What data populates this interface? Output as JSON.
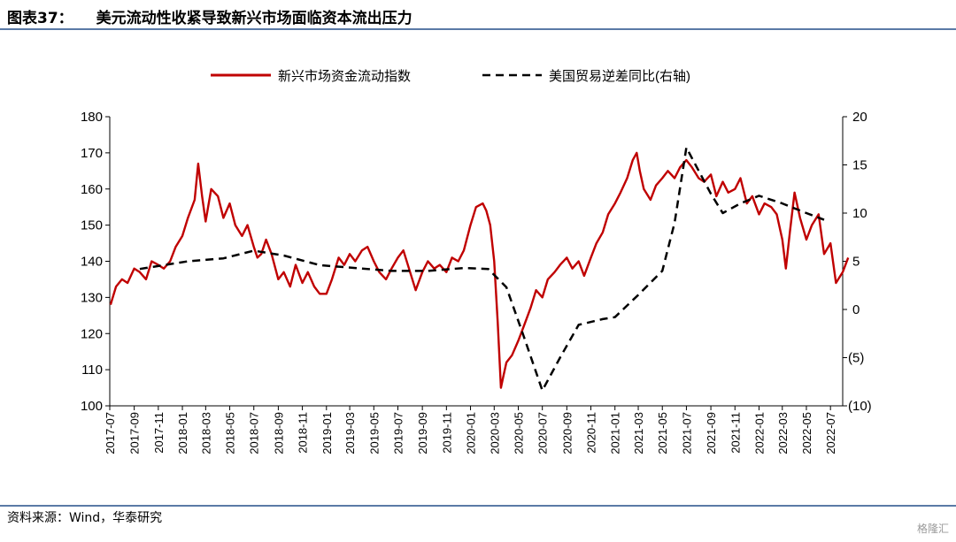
{
  "header": {
    "figure_number": "图表37：",
    "title": "美元流动性收紧导致新兴市场面临资本流出压力"
  },
  "footer": {
    "source": "资料来源：Wind，华泰研究",
    "watermark": "格隆汇"
  },
  "colors": {
    "rule": "#5a7aa6",
    "series_primary": "#c00000",
    "series_secondary": "#000000"
  },
  "chart_data": {
    "type": "line",
    "title": "",
    "legend_position": "top",
    "grid": false,
    "x_start": "2017-07",
    "x_end": "2022-08",
    "x_tick_labels": [
      "2017-07",
      "2017-09",
      "2017-11",
      "2018-01",
      "2018-03",
      "2018-05",
      "2018-07",
      "2018-09",
      "2018-11",
      "2019-01",
      "2019-03",
      "2019-05",
      "2019-07",
      "2019-09",
      "2019-11",
      "2020-01",
      "2020-03",
      "2020-05",
      "2020-07",
      "2020-09",
      "2020-11",
      "2021-01",
      "2021-03",
      "2021-05",
      "2021-07",
      "2021-09",
      "2021-11",
      "2022-01",
      "2022-03",
      "2022-05",
      "2022-07"
    ],
    "y_left": {
      "range": [
        100,
        180
      ],
      "ticks": [
        "100",
        "110",
        "120",
        "130",
        "140",
        "150",
        "160",
        "170",
        "180"
      ]
    },
    "y_right": {
      "range": [
        -10,
        20
      ],
      "ticks": [
        "(10)",
        "(5)",
        "0",
        "5",
        "10",
        "15",
        "20"
      ]
    },
    "series": [
      {
        "name": "新兴市场资金流动指数",
        "axis": "left",
        "style": "solid",
        "color": "#c00000",
        "points": [
          [
            "2017-07-03",
            128
          ],
          [
            "2017-07-17",
            133
          ],
          [
            "2017-08-01",
            135
          ],
          [
            "2017-08-15",
            134
          ],
          [
            "2017-09-01",
            138
          ],
          [
            "2017-09-15",
            137
          ],
          [
            "2017-10-01",
            135
          ],
          [
            "2017-10-15",
            140
          ],
          [
            "2017-11-01",
            139
          ],
          [
            "2017-11-15",
            138
          ],
          [
            "2017-12-01",
            140
          ],
          [
            "2017-12-15",
            144
          ],
          [
            "2018-01-01",
            147
          ],
          [
            "2018-01-15",
            152
          ],
          [
            "2018-02-01",
            157
          ],
          [
            "2018-02-10",
            167
          ],
          [
            "2018-02-20",
            158
          ],
          [
            "2018-03-01",
            151
          ],
          [
            "2018-03-15",
            160
          ],
          [
            "2018-04-01",
            158
          ],
          [
            "2018-04-15",
            152
          ],
          [
            "2018-05-01",
            156
          ],
          [
            "2018-05-15",
            150
          ],
          [
            "2018-06-01",
            147
          ],
          [
            "2018-06-15",
            150
          ],
          [
            "2018-07-01",
            144
          ],
          [
            "2018-07-10",
            141
          ],
          [
            "2018-07-20",
            142
          ],
          [
            "2018-08-01",
            146
          ],
          [
            "2018-08-15",
            142
          ],
          [
            "2018-09-01",
            135
          ],
          [
            "2018-09-15",
            137
          ],
          [
            "2018-10-01",
            133
          ],
          [
            "2018-10-15",
            139
          ],
          [
            "2018-11-01",
            134
          ],
          [
            "2018-11-15",
            137
          ],
          [
            "2018-12-01",
            133
          ],
          [
            "2018-12-15",
            131
          ],
          [
            "2019-01-01",
            131
          ],
          [
            "2019-01-15",
            135
          ],
          [
            "2019-02-01",
            141
          ],
          [
            "2019-02-15",
            139
          ],
          [
            "2019-03-01",
            142
          ],
          [
            "2019-03-15",
            140
          ],
          [
            "2019-04-01",
            143
          ],
          [
            "2019-04-15",
            144
          ],
          [
            "2019-05-01",
            140
          ],
          [
            "2019-05-15",
            137
          ],
          [
            "2019-06-01",
            135
          ],
          [
            "2019-06-15",
            138
          ],
          [
            "2019-07-01",
            141
          ],
          [
            "2019-07-15",
            143
          ],
          [
            "2019-08-01",
            137
          ],
          [
            "2019-08-15",
            132
          ],
          [
            "2019-09-01",
            137
          ],
          [
            "2019-09-15",
            140
          ],
          [
            "2019-10-01",
            138
          ],
          [
            "2019-10-15",
            139
          ],
          [
            "2019-11-01",
            137
          ],
          [
            "2019-11-15",
            141
          ],
          [
            "2019-12-01",
            140
          ],
          [
            "2019-12-15",
            143
          ],
          [
            "2020-01-01",
            150
          ],
          [
            "2020-01-15",
            155
          ],
          [
            "2020-02-01",
            156
          ],
          [
            "2020-02-10",
            154
          ],
          [
            "2020-02-20",
            150
          ],
          [
            "2020-03-01",
            140
          ],
          [
            "2020-03-10",
            123
          ],
          [
            "2020-03-18",
            105
          ],
          [
            "2020-03-24",
            108
          ],
          [
            "2020-04-01",
            112
          ],
          [
            "2020-04-15",
            114
          ],
          [
            "2020-05-01",
            118
          ],
          [
            "2020-05-15",
            122
          ],
          [
            "2020-06-01",
            127
          ],
          [
            "2020-06-15",
            132
          ],
          [
            "2020-07-01",
            130
          ],
          [
            "2020-07-15",
            135
          ],
          [
            "2020-08-01",
            137
          ],
          [
            "2020-08-15",
            139
          ],
          [
            "2020-09-01",
            141
          ],
          [
            "2020-09-15",
            138
          ],
          [
            "2020-10-01",
            140
          ],
          [
            "2020-10-15",
            136
          ],
          [
            "2020-11-01",
            141
          ],
          [
            "2020-11-15",
            145
          ],
          [
            "2020-12-01",
            148
          ],
          [
            "2020-12-15",
            153
          ],
          [
            "2021-01-01",
            156
          ],
          [
            "2021-01-15",
            159
          ],
          [
            "2021-02-01",
            163
          ],
          [
            "2021-02-15",
            168
          ],
          [
            "2021-02-25",
            170
          ],
          [
            "2021-03-05",
            165
          ],
          [
            "2021-03-15",
            160
          ],
          [
            "2021-04-01",
            157
          ],
          [
            "2021-04-15",
            161
          ],
          [
            "2021-05-01",
            163
          ],
          [
            "2021-05-15",
            165
          ],
          [
            "2021-06-01",
            163
          ],
          [
            "2021-06-15",
            166
          ],
          [
            "2021-07-01",
            168
          ],
          [
            "2021-07-15",
            166
          ],
          [
            "2021-08-01",
            163
          ],
          [
            "2021-08-15",
            162
          ],
          [
            "2021-09-01",
            164
          ],
          [
            "2021-09-15",
            158
          ],
          [
            "2021-10-01",
            162
          ],
          [
            "2021-10-15",
            159
          ],
          [
            "2021-11-01",
            160
          ],
          [
            "2021-11-15",
            163
          ],
          [
            "2021-12-01",
            156
          ],
          [
            "2021-12-15",
            158
          ],
          [
            "2022-01-01",
            153
          ],
          [
            "2022-01-15",
            156
          ],
          [
            "2022-02-01",
            155
          ],
          [
            "2022-02-15",
            153
          ],
          [
            "2022-03-01",
            146
          ],
          [
            "2022-03-10",
            138
          ],
          [
            "2022-03-20",
            148
          ],
          [
            "2022-04-01",
            159
          ],
          [
            "2022-04-15",
            152
          ],
          [
            "2022-05-01",
            146
          ],
          [
            "2022-05-15",
            150
          ],
          [
            "2022-06-01",
            153
          ],
          [
            "2022-06-15",
            142
          ],
          [
            "2022-07-01",
            145
          ],
          [
            "2022-07-15",
            134
          ],
          [
            "2022-08-01",
            137
          ],
          [
            "2022-08-15",
            141
          ]
        ]
      },
      {
        "name": "美国贸易逆差同比(右轴)",
        "axis": "right",
        "style": "dashed",
        "color": "#000000",
        "points": [
          [
            "2017-09-15",
            4.2
          ],
          [
            "2018-01-15",
            5.0
          ],
          [
            "2018-04-15",
            5.3
          ],
          [
            "2018-07-01",
            6.1
          ],
          [
            "2018-09-15",
            5.6
          ],
          [
            "2018-12-15",
            4.6
          ],
          [
            "2019-03-15",
            4.3
          ],
          [
            "2019-06-15",
            4.0
          ],
          [
            "2019-09-15",
            4.0
          ],
          [
            "2019-12-15",
            4.3
          ],
          [
            "2020-02-15",
            4.2
          ],
          [
            "2020-04-01",
            2.3
          ],
          [
            "2020-05-15",
            -2.8
          ],
          [
            "2020-07-01",
            -8.4
          ],
          [
            "2020-08-15",
            -5.0
          ],
          [
            "2020-10-01",
            -1.6
          ],
          [
            "2020-12-01",
            -1.0
          ],
          [
            "2021-01-01",
            -0.8
          ],
          [
            "2021-03-01",
            1.5
          ],
          [
            "2021-05-01",
            4.0
          ],
          [
            "2021-06-01",
            9.0
          ],
          [
            "2021-07-01",
            16.8
          ],
          [
            "2021-09-01",
            12.0
          ],
          [
            "2021-10-01",
            10.0
          ],
          [
            "2021-11-15",
            11.0
          ],
          [
            "2022-01-01",
            11.8
          ],
          [
            "2022-03-01",
            11.0
          ],
          [
            "2022-05-01",
            10.0
          ],
          [
            "2022-06-15",
            9.3
          ]
        ]
      }
    ]
  }
}
